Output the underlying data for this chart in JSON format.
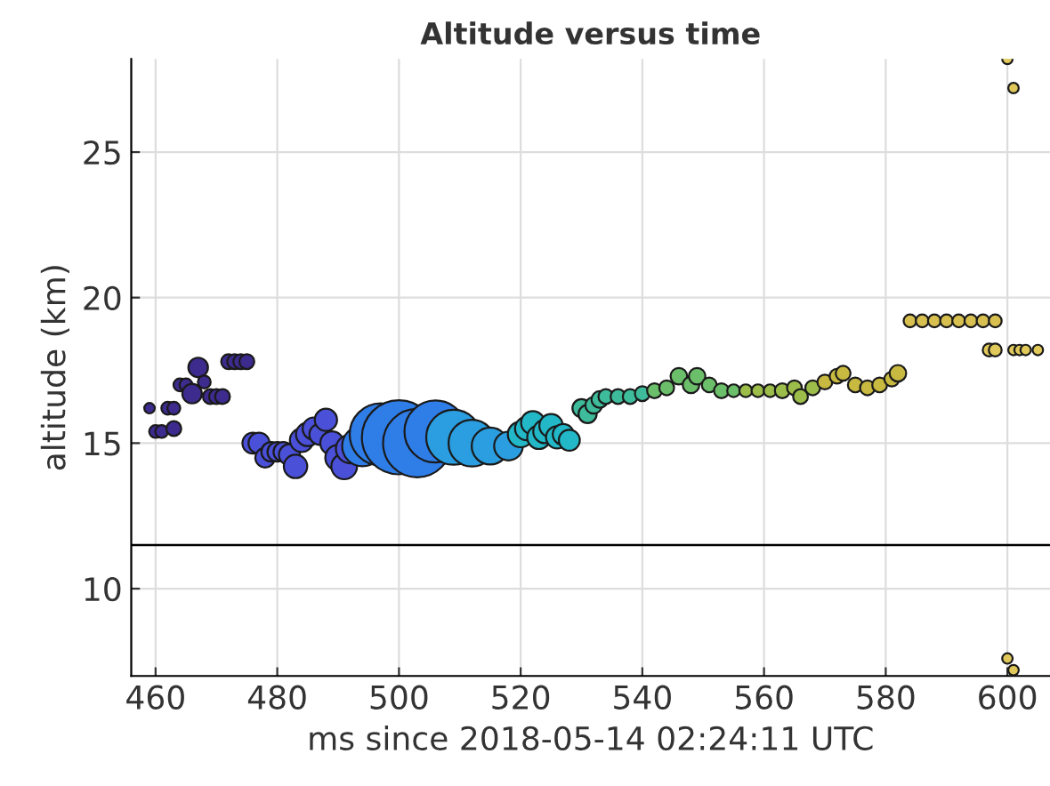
{
  "chart_data": {
    "type": "bubble",
    "title": "Altitude versus time",
    "xlabel": "ms since 2018-05-14 02:24:11 UTC",
    "ylabel": "altitude (km)",
    "x": [
      459,
      460,
      461,
      462,
      463,
      463,
      464,
      465,
      466,
      467,
      468,
      469,
      470,
      471,
      472,
      473,
      474,
      475,
      476,
      477,
      478,
      479,
      480,
      481,
      482,
      483,
      484,
      485,
      486,
      487,
      488,
      489,
      490,
      491,
      492,
      494,
      497,
      500,
      503,
      506,
      509,
      512,
      515,
      518,
      520,
      521,
      522,
      523,
      524,
      525,
      526,
      527,
      528,
      530,
      531,
      532,
      533,
      534,
      536,
      538,
      540,
      542,
      544,
      546,
      548,
      549,
      551,
      553,
      555,
      557,
      559,
      561,
      563,
      565,
      566,
      568,
      570,
      572,
      573,
      575,
      577,
      579,
      581,
      582,
      584,
      586,
      588,
      590,
      592,
      594,
      596,
      598,
      597,
      598,
      601,
      602,
      603,
      605,
      600,
      601,
      600,
      601
    ],
    "values": [
      16.2,
      15.4,
      15.4,
      16.2,
      16.2,
      15.5,
      17.0,
      17.0,
      16.7,
      17.6,
      17.1,
      16.6,
      16.6,
      16.6,
      17.8,
      17.8,
      17.8,
      17.8,
      15.0,
      15.0,
      14.5,
      14.7,
      14.7,
      14.7,
      14.6,
      14.2,
      15.1,
      15.3,
      15.5,
      15.3,
      15.8,
      15.0,
      14.5,
      14.2,
      14.8,
      14.9,
      15.3,
      15.2,
      15.0,
      15.4,
      15.2,
      15.0,
      14.9,
      14.9,
      15.3,
      15.5,
      15.7,
      15.2,
      15.4,
      15.6,
      15.2,
      15.3,
      15.1,
      16.2,
      16.0,
      16.3,
      16.5,
      16.6,
      16.6,
      16.6,
      16.7,
      16.8,
      16.9,
      17.3,
      17.0,
      17.3,
      17.0,
      16.8,
      16.8,
      16.8,
      16.8,
      16.8,
      16.8,
      16.9,
      16.6,
      16.9,
      17.1,
      17.3,
      17.4,
      17.0,
      16.9,
      17.0,
      17.2,
      17.4,
      19.2,
      19.2,
      19.2,
      19.2,
      19.2,
      19.2,
      19.2,
      19.2,
      18.2,
      18.2,
      18.2,
      18.2,
      18.2,
      18.2,
      28.2,
      27.2,
      7.6,
      7.2
    ],
    "sizes": [
      0.02,
      0.03,
      0.03,
      0.03,
      0.03,
      0.04,
      0.03,
      0.03,
      0.07,
      0.07,
      0.03,
      0.04,
      0.04,
      0.04,
      0.04,
      0.04,
      0.04,
      0.04,
      0.08,
      0.08,
      0.07,
      0.07,
      0.07,
      0.07,
      0.08,
      0.1,
      0.1,
      0.1,
      0.09,
      0.08,
      0.09,
      0.1,
      0.12,
      0.12,
      0.15,
      0.3,
      0.7,
      1.0,
      0.85,
      0.7,
      0.55,
      0.4,
      0.25,
      0.15,
      0.12,
      0.1,
      0.1,
      0.1,
      0.1,
      0.1,
      0.09,
      0.08,
      0.08,
      0.06,
      0.06,
      0.05,
      0.05,
      0.04,
      0.04,
      0.04,
      0.04,
      0.04,
      0.04,
      0.05,
      0.05,
      0.05,
      0.04,
      0.04,
      0.03,
      0.03,
      0.03,
      0.03,
      0.04,
      0.04,
      0.04,
      0.04,
      0.04,
      0.04,
      0.04,
      0.04,
      0.04,
      0.04,
      0.04,
      0.05,
      0.03,
      0.03,
      0.03,
      0.03,
      0.03,
      0.03,
      0.03,
      0.03,
      0.03,
      0.03,
      0.02,
      0.02,
      0.02,
      0.02,
      0.02,
      0.02,
      0.02,
      0.02
    ],
    "colors": [
      "#3d2b8e",
      "#3d2b8e",
      "#3d2b8e",
      "#3d2b8e",
      "#3d2b8e",
      "#3d2b8e",
      "#3d2b8e",
      "#3d2b8e",
      "#3d2b8e",
      "#3d2b8e",
      "#3d2b8e",
      "#3d2b8e",
      "#3d2b8e",
      "#3d2b8e",
      "#3d2b8e",
      "#3d2b8e",
      "#3d2b8e",
      "#3d2b8e",
      "#4a50d8",
      "#4a50d8",
      "#4a50d8",
      "#4a50d8",
      "#4a50d8",
      "#4a50d8",
      "#4a50d8",
      "#4a50d8",
      "#4a50d8",
      "#4a50d8",
      "#4a50d8",
      "#4a50d8",
      "#4a50d8",
      "#4a50d8",
      "#4a50d8",
      "#4a50d8",
      "#4a50d8",
      "#2f7ee8",
      "#2f7ee8",
      "#2f7ee8",
      "#2f7ee8",
      "#2f7ee8",
      "#2a9ee0",
      "#2a9ee0",
      "#2a9ee0",
      "#2a9ee0",
      "#22b8c8",
      "#22b8c8",
      "#22b8c8",
      "#22b8c8",
      "#22b8c8",
      "#22b8c8",
      "#22b8c8",
      "#22b8c8",
      "#22b8c8",
      "#3dbb9a",
      "#3dbb9a",
      "#3dbb9a",
      "#3dbb9a",
      "#3dbb9a",
      "#3dbb9a",
      "#3dbb9a",
      "#3dbb9a",
      "#6cbf6a",
      "#6cbf6a",
      "#6cbf6a",
      "#6cbf6a",
      "#6cbf6a",
      "#6cbf6a",
      "#6cbf6a",
      "#6cbf6a",
      "#9cbd4a",
      "#9cbd4a",
      "#9cbd4a",
      "#9cbd4a",
      "#9cbd4a",
      "#9cbd4a",
      "#9cbd4a",
      "#c8b940",
      "#c8b940",
      "#c8b940",
      "#c8b940",
      "#c8b940",
      "#c8b940",
      "#c8b940",
      "#c8b940",
      "#d8c050",
      "#d8c050",
      "#d8c050",
      "#d8c050",
      "#d8c050",
      "#d8c050",
      "#d8c050",
      "#d8c050",
      "#e0c95a",
      "#e0c95a",
      "#e0c95a",
      "#e0c95a",
      "#e0c95a",
      "#e0c95a",
      "#e0c95a",
      "#e0c95a",
      "#e0c95a",
      "#e0c95a"
    ],
    "xlim": [
      456,
      607
    ],
    "xticks": [
      460,
      480,
      500,
      520,
      540,
      560,
      580,
      600
    ],
    "ylim": [
      7,
      28.2
    ],
    "yticks": [
      10,
      15,
      20,
      25
    ],
    "ref_lines": [
      {
        "axis": "y",
        "value": 11.5,
        "color": "#000000"
      }
    ],
    "grid": true,
    "marker": "circle"
  }
}
